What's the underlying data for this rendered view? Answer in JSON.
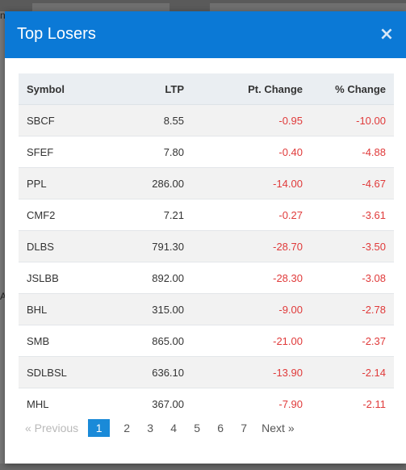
{
  "background": {
    "fragment_top": "n",
    "fragment_mid": "A"
  },
  "modal": {
    "title": "Top Losers",
    "close_symbol": "×"
  },
  "table": {
    "headers": {
      "symbol": "Symbol",
      "ltp": "LTP",
      "pt_change": "Pt. Change",
      "pct_change": "% Change"
    },
    "rows": [
      {
        "symbol": "SBCF",
        "ltp": "8.55",
        "pt_change": "-0.95",
        "pct_change": "-10.00"
      },
      {
        "symbol": "SFEF",
        "ltp": "7.80",
        "pt_change": "-0.40",
        "pct_change": "-4.88"
      },
      {
        "symbol": "PPL",
        "ltp": "286.00",
        "pt_change": "-14.00",
        "pct_change": "-4.67"
      },
      {
        "symbol": "CMF2",
        "ltp": "7.21",
        "pt_change": "-0.27",
        "pct_change": "-3.61"
      },
      {
        "symbol": "DLBS",
        "ltp": "791.30",
        "pt_change": "-28.70",
        "pct_change": "-3.50"
      },
      {
        "symbol": "JSLBB",
        "ltp": "892.00",
        "pt_change": "-28.30",
        "pct_change": "-3.08"
      },
      {
        "symbol": "BHL",
        "ltp": "315.00",
        "pt_change": "-9.00",
        "pct_change": "-2.78"
      },
      {
        "symbol": "SMB",
        "ltp": "865.00",
        "pt_change": "-21.00",
        "pct_change": "-2.37"
      },
      {
        "symbol": "SDLBSL",
        "ltp": "636.10",
        "pt_change": "-13.90",
        "pct_change": "-2.14"
      },
      {
        "symbol": "MHL",
        "ltp": "367.00",
        "pt_change": "-7.90",
        "pct_change": "-2.11"
      }
    ]
  },
  "pagination": {
    "prev_label": "« Previous",
    "next_label": "Next »",
    "pages": [
      "1",
      "2",
      "3",
      "4",
      "5",
      "6",
      "7"
    ],
    "current_page": "1"
  },
  "colors": {
    "header_bg": "#0b79d6",
    "negative": "#e03a3a",
    "active_page": "#1a8ad8"
  }
}
